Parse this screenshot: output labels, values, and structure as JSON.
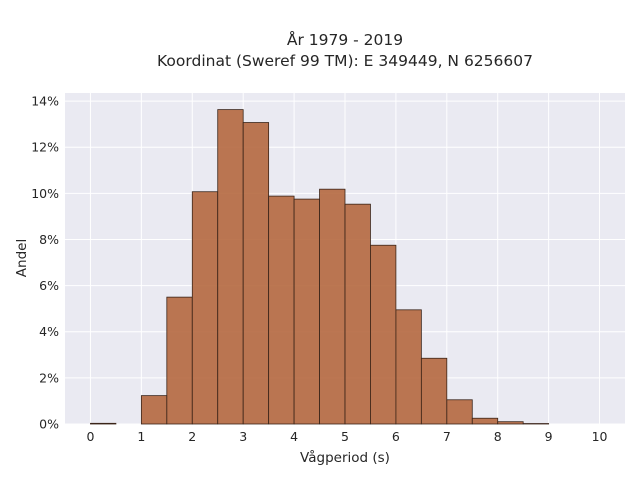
{
  "chart_data": {
    "type": "bar",
    "title_line1": "År 1979 - 2019",
    "title_line2": "Koordinat (Sweref 99 TM): E 349449, N 6256607",
    "xlabel": "Vågperiod (s)",
    "ylabel": "Andel",
    "xlim": [
      -0.5,
      10.5
    ],
    "ylim": [
      0,
      0.1435
    ],
    "x_ticks": [
      0,
      1,
      2,
      3,
      4,
      5,
      6,
      7,
      8,
      9,
      10
    ],
    "y_ticks": [
      0,
      0.02,
      0.04,
      0.06,
      0.08,
      0.1,
      0.12,
      0.14
    ],
    "y_tick_labels": [
      "0%",
      "2%",
      "4%",
      "6%",
      "8%",
      "10%",
      "12%",
      "14%"
    ],
    "bin_edges": [
      0,
      0.5,
      1,
      1.5,
      2,
      2.5,
      3,
      3.5,
      4,
      4.5,
      5,
      5.5,
      6,
      6.5,
      7,
      7.5,
      8,
      8.5,
      9
    ],
    "values": [
      0.0003,
      0.0,
      0.0123,
      0.055,
      0.1007,
      0.1363,
      0.1307,
      0.0988,
      0.0975,
      0.1018,
      0.0953,
      0.0775,
      0.0495,
      0.0285,
      0.0105,
      0.0025,
      0.001,
      0.0002
    ],
    "grid": true,
    "bar_color": "#b5683f",
    "bar_edge_color": "#3a2418",
    "background_color": "#eaeaf2"
  }
}
